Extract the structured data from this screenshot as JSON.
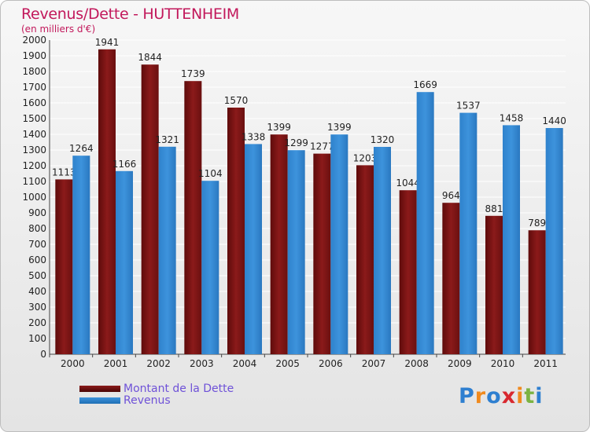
{
  "title": "Revenus/Dette - HUTTENHEIM",
  "subtitle": "(en milliers d'€)",
  "logo": {
    "text": "Proxiti",
    "letters": [
      "P",
      "r",
      "o",
      "x",
      "i",
      "t",
      "i"
    ],
    "colors": [
      "#2e7fd0",
      "#f08a1e",
      "#2e7fd0",
      "#d8282f",
      "#f08a1e",
      "#7cb342",
      "#2e7fd0"
    ]
  },
  "colors": {
    "dette": "#8b1a1a",
    "revenus": "#3d93dc",
    "title": "#c2185b",
    "legend_text": "#6f52d8"
  },
  "chart_data": {
    "type": "bar",
    "title": "Revenus/Dette - HUTTENHEIM",
    "subtitle": "(en milliers d'€)",
    "categories": [
      "2000",
      "2001",
      "2002",
      "2003",
      "2004",
      "2005",
      "2006",
      "2007",
      "2008",
      "2009",
      "2010",
      "2011"
    ],
    "series": [
      {
        "name": "Montant de la Dette",
        "values": [
          1113,
          1941,
          1844,
          1739,
          1570,
          1399,
          1277,
          1203,
          1044,
          964,
          881,
          789
        ]
      },
      {
        "name": "Revenus",
        "values": [
          1264,
          1166,
          1321,
          1104,
          1338,
          1299,
          1399,
          1320,
          1669,
          1537,
          1458,
          1440
        ]
      }
    ],
    "ylim": [
      0,
      2000
    ],
    "ytick_step": 100,
    "grid": true,
    "legend_position": "bottom-left"
  }
}
